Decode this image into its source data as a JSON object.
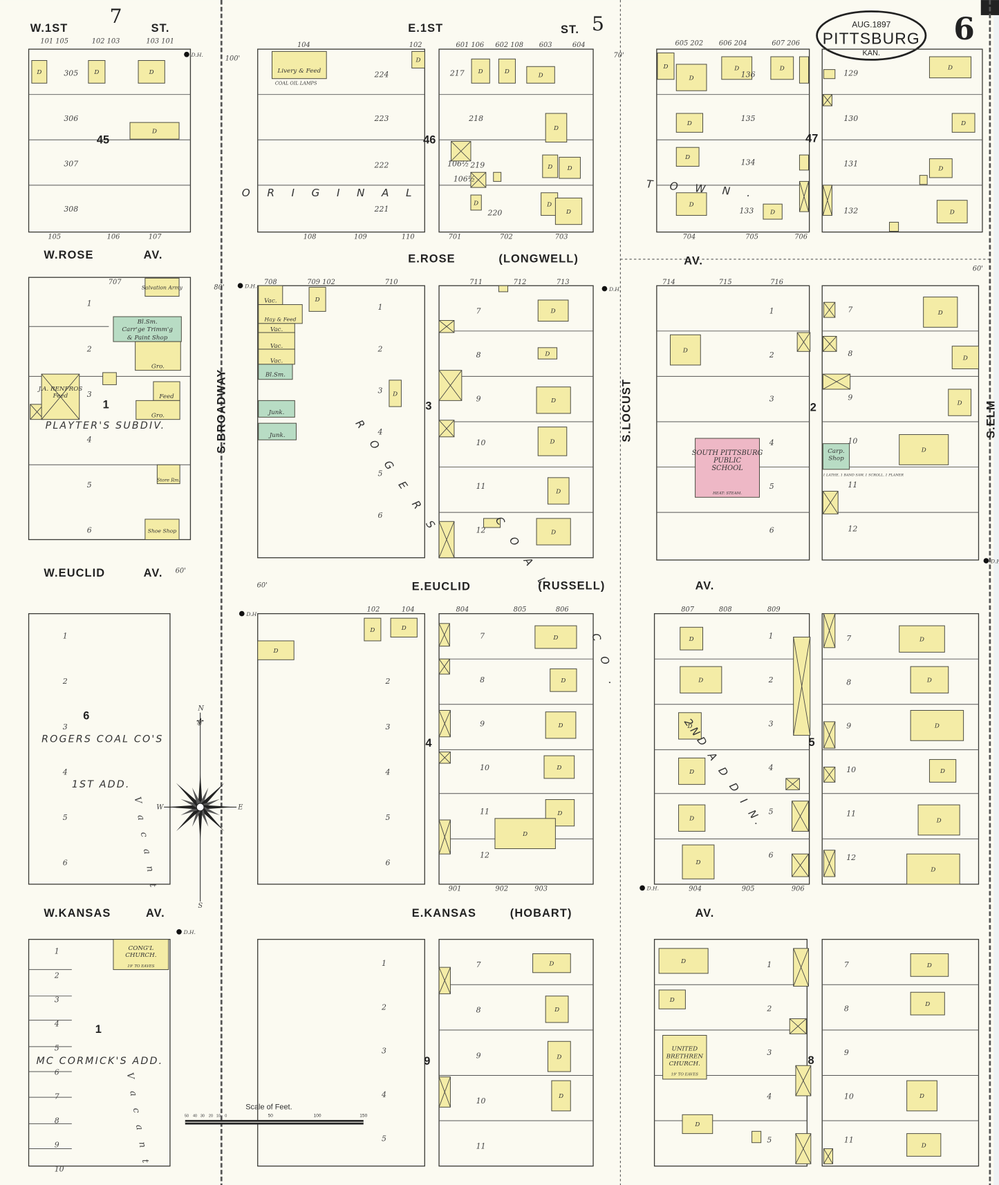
{
  "map": {
    "title_city": "PITTSBURG",
    "title_date": "AUG.1897",
    "title_state": "KAN.",
    "sheet_number": "6",
    "adjoining_sheets": {
      "west": "7",
      "north": "5"
    },
    "dwelling_label": "D",
    "colors": {
      "paper": "#fbfaf1",
      "frame": "#f4eca6",
      "brick_stone": "#eeb8c6",
      "special": "#b8dcc4"
    },
    "streets": {
      "w_first": "W.1ST",
      "st_w": "ST.",
      "e_first": "E.1ST",
      "st_e": "ST.",
      "w_rose": "W.ROSE",
      "av1": "AV.",
      "e_rose": "E.ROSE",
      "longwell": "(LONGWELL)",
      "av2": "AV.",
      "w_euclid": "W.EUCLID",
      "av3": "AV.",
      "e_euclid": "E.EUCLID",
      "russell": "(RUSSELL)",
      "av4": "AV.",
      "w_kansas": "W.KANSAS",
      "av5": "AV.",
      "e_kansas": "E.KANSAS",
      "hobart": "(HOBART)",
      "av6": "AV.",
      "broadway": "S.BROADWAY",
      "locust": "S.LOCUST",
      "elm": "S.ELM"
    },
    "blocks": [
      "45",
      "46",
      "47",
      "1",
      "3",
      "2",
      "6",
      "4",
      "5",
      "1",
      "9",
      "8"
    ],
    "subdivisions": {
      "original": "O R I G I N A L",
      "town": "T O W N .",
      "playters": "PLAYTER'S  SUBDIV.",
      "rogers": "R O G E R S",
      "coal": "C O A L",
      "co": "C O .",
      "rogers_coal": "ROGERS COAL CO'S",
      "first_add": "1ST ADD.",
      "second_add": "2ND A D D I N.",
      "mccormick": "MC CORMICK'S  ADD.",
      "vacant1": "V a c a n t",
      "vacant2": "V a c a n t"
    },
    "buildings": {
      "livery": "Livery & Feed",
      "livery_note": "COAL OIL LAMPS",
      "salvation": "Salvation Army",
      "carriage1": "Carr'ge Trimm'g",
      "carriage2": "& Paint Shop",
      "bl_sm": "Bl.Sm.",
      "gro1": "Gro.",
      "renfros1": "J.A. RENFROS",
      "renfros2": "Feed",
      "feed": "Feed",
      "gro2": "Gro.",
      "store_rm": "Store Rm.",
      "shoe": "Shoe Shop",
      "vac1": "Vac.",
      "hay": "Hay & Feed",
      "vac2": "Vac.",
      "vac3": "Vac.",
      "vac4": "Vac.",
      "bl_sm2": "Bl.Sm.",
      "junk1": "Junk.",
      "junk2": "Junk.",
      "school1": "SOUTH PITTSBURG",
      "school2": "PUBLIC",
      "school3": "SCHOOL",
      "school_heat": "HEAT: STEAM.",
      "carp1": "Carp.",
      "carp2": "Shop",
      "lathe": "1 LATHE, 1 BAND SAW, 1 SCROLL, 1 PLANER",
      "congl1": "CONG'L",
      "congl2": "CHURCH.",
      "congl_eaves": "19' TO EAVES",
      "ub1": "UNITED",
      "ub2": "BRETHREN",
      "ub3": "CHURCH.",
      "ub_eaves": "19' TO EAVES"
    },
    "addresses": {
      "top_w": [
        "101 105",
        "102 103",
        "103 101"
      ],
      "top_e": [
        "104",
        "102",
        "601 106",
        "602 108",
        "603",
        "604"
      ],
      "top_ne": [
        "605 202",
        "606 204",
        "607 206"
      ],
      "row2_top": [
        "707",
        "708",
        "709 102",
        "710",
        "711",
        "712",
        "713",
        "714",
        "715",
        "716"
      ],
      "row3_top": [
        "102",
        "104",
        "804",
        "805",
        "806",
        "807",
        "808",
        "809"
      ],
      "row3_bottom": [
        "901",
        "902",
        "903",
        "904",
        "905",
        "906"
      ],
      "row1_bottom": [
        "105",
        "106",
        "107",
        "108",
        "109",
        "110",
        "701",
        "702",
        "703",
        "704",
        "705",
        "706"
      ],
      "lots_45": [
        "305",
        "306",
        "307",
        "308"
      ],
      "lots_46a": [
        "224",
        "223",
        "222",
        "221"
      ],
      "lots_46b": [
        "217",
        "218",
        "219",
        "220",
        "106½",
        "106½"
      ],
      "lots_47a": [
        "136",
        "135",
        "134",
        "133"
      ],
      "lots_47b": [
        "129",
        "130",
        "131",
        "132"
      ]
    },
    "lot_numbers": [
      "1",
      "2",
      "3",
      "4",
      "5",
      "6",
      "7",
      "8",
      "9",
      "10",
      "11",
      "12"
    ],
    "hydrant_label": "D.H.",
    "widths": [
      "100'",
      "80'",
      "60'",
      "60'",
      "70'",
      "60'"
    ],
    "compass": {
      "n": "N",
      "s": "S",
      "e": "E",
      "w": "W"
    },
    "scale": {
      "title": "Scale of Feet.",
      "ticks": [
        "50",
        "40",
        "30",
        "20",
        "10",
        "0",
        "50",
        "100",
        "150"
      ]
    }
  }
}
